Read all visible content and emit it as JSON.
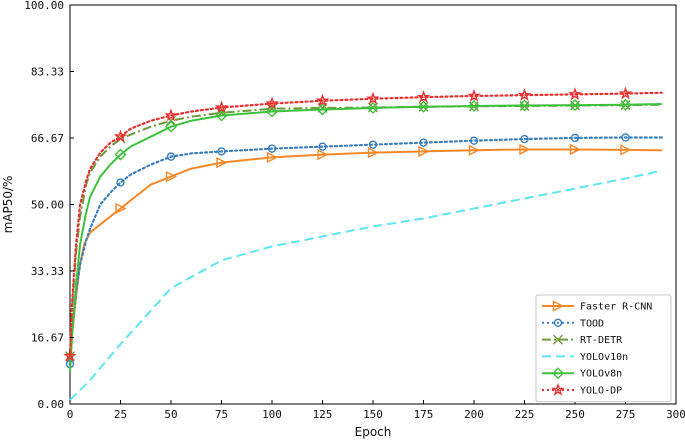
{
  "chart_data": {
    "type": "line",
    "title": "",
    "xlabel": "Epoch",
    "ylabel": "mAP50/%",
    "xlim": [
      0,
      300
    ],
    "ylim": [
      0,
      100
    ],
    "xticks": [
      0,
      25,
      50,
      75,
      100,
      125,
      150,
      175,
      200,
      225,
      250,
      275,
      300
    ],
    "xtick_labels": [
      "0",
      "25",
      "50",
      "75",
      "100",
      "125",
      "150",
      "175",
      "200",
      "225",
      "250",
      "275",
      "300"
    ],
    "yticks": [
      0,
      16.67,
      33.33,
      50,
      66.67,
      83.33,
      100
    ],
    "ytick_labels": [
      "0.00",
      "16.67",
      "33.33",
      "50.00",
      "66.67",
      "83.33",
      "100.00"
    ],
    "grid": false,
    "legend_position": "bottom-right",
    "series": [
      {
        "name": "Faster R-CNN",
        "color": "#f5892a",
        "dash": "solid",
        "marker": "triangle-right",
        "x": [
          0,
          1,
          3,
          5,
          7,
          10,
          15,
          20,
          25,
          30,
          40,
          50,
          60,
          75,
          90,
          100,
          125,
          150,
          175,
          200,
          225,
          250,
          275,
          293
        ],
        "y": [
          9,
          17,
          27,
          35,
          40,
          43,
          45,
          47,
          49,
          51,
          55,
          57,
          59,
          60.5,
          61.3,
          61.8,
          62.5,
          63,
          63.3,
          63.6,
          63.8,
          63.8,
          63.7,
          63.6
        ],
        "marker_x": [
          25,
          50,
          75,
          100,
          125,
          150,
          175,
          200,
          225,
          250,
          275
        ]
      },
      {
        "name": "TOOD",
        "color": "#3a7ebf",
        "dash": "dotted",
        "marker": "circle",
        "x": [
          0,
          1,
          3,
          5,
          8,
          10,
          15,
          20,
          25,
          30,
          40,
          50,
          60,
          75,
          100,
          125,
          150,
          175,
          200,
          225,
          250,
          275,
          293
        ],
        "y": [
          10,
          18,
          28,
          35,
          41,
          44,
          50,
          53,
          55.5,
          57.5,
          60,
          62,
          62.8,
          63.3,
          64,
          64.5,
          65,
          65.5,
          66,
          66.4,
          66.7,
          66.8,
          66.8
        ],
        "marker_x": [
          0,
          25,
          50,
          75,
          100,
          125,
          150,
          175,
          200,
          225,
          250,
          275
        ]
      },
      {
        "name": "RT-DETR",
        "color": "#6f9a3a",
        "dash": "dashdot",
        "marker": "x",
        "x": [
          0,
          1,
          3,
          5,
          8,
          10,
          15,
          20,
          25,
          30,
          40,
          50,
          60,
          75,
          100,
          125,
          150,
          175,
          200,
          225,
          250,
          275,
          293
        ],
        "y": [
          12,
          24,
          38,
          47,
          55,
          58,
          62,
          64.5,
          66.5,
          67.5,
          69.5,
          71,
          72,
          73,
          74,
          74.2,
          74.3,
          74.5,
          74.6,
          74.7,
          74.8,
          74.9,
          75
        ],
        "marker_x": [
          0,
          25,
          50,
          75,
          100,
          125,
          150,
          175,
          200,
          225,
          250,
          275
        ]
      },
      {
        "name": "YOLOv10n",
        "color": "#5de6f0",
        "dash": "dashed",
        "marker": "none",
        "x": [
          0,
          10,
          25,
          50,
          75,
          100,
          125,
          150,
          175,
          200,
          225,
          250,
          275,
          293
        ],
        "y": [
          1,
          6,
          15,
          29,
          36,
          39.5,
          42,
          44.5,
          46.5,
          49,
          51.5,
          54,
          56.5,
          58.5
        ],
        "marker_x": []
      },
      {
        "name": "YOLOv8n",
        "color": "#3dc23d",
        "dash": "solid",
        "marker": "diamond",
        "x": [
          0,
          1,
          3,
          5,
          8,
          10,
          15,
          20,
          25,
          30,
          40,
          50,
          60,
          75,
          100,
          125,
          150,
          175,
          200,
          225,
          250,
          275,
          293
        ],
        "y": [
          8,
          17,
          30,
          40,
          48,
          52,
          57,
          60,
          62.5,
          64.5,
          67,
          69.5,
          71,
          72.3,
          73.3,
          73.8,
          74.2,
          74.5,
          74.7,
          74.8,
          74.9,
          75,
          75.2
        ],
        "marker_x": [
          25,
          50,
          75,
          100,
          125,
          150,
          175,
          200,
          225,
          250,
          275
        ]
      },
      {
        "name": "YOLO-DP",
        "color": "#e83030",
        "dash": "dotted",
        "marker": "star",
        "x": [
          0,
          1,
          3,
          5,
          8,
          10,
          15,
          20,
          25,
          30,
          40,
          50,
          60,
          75,
          100,
          125,
          150,
          175,
          200,
          225,
          250,
          275,
          293
        ],
        "y": [
          12,
          25,
          40,
          50,
          56,
          59,
          63,
          65.5,
          67,
          69,
          71,
          72.3,
          73.3,
          74.3,
          75.3,
          76,
          76.5,
          76.9,
          77.2,
          77.4,
          77.6,
          77.8,
          78
        ],
        "marker_x": [
          0,
          25,
          50,
          75,
          100,
          125,
          150,
          175,
          200,
          225,
          250,
          275
        ]
      }
    ]
  }
}
